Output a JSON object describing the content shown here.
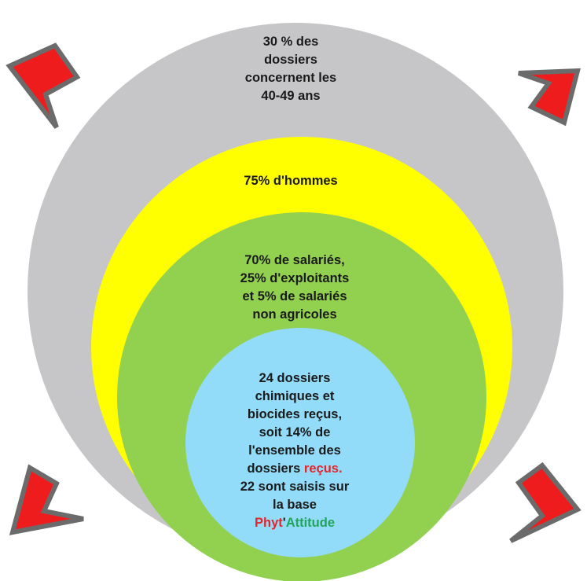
{
  "colors": {
    "gray": "#c6c6c9",
    "yellow": "#ffff00",
    "green": "#92d050",
    "blue": "#92dcf9",
    "arrow_fill": "#ee1c1c",
    "arrow_stroke": "#6b6b6b"
  },
  "circles": {
    "gray": {
      "lines": [
        "30 % des",
        "dossiers",
        "concernent les",
        "40-49 ans"
      ]
    },
    "yellow": {
      "lines": [
        "75% d'hommes"
      ]
    },
    "green": {
      "lines": [
        "70% de salariés,",
        "25% d'exploitants",
        "et 5% de salariés",
        "non agricoles"
      ]
    },
    "blue": {
      "lines": [
        "24 dossiers",
        "chimiques et",
        "biocides reçus,",
        "soit 14% de",
        "l'ensemble des"
      ],
      "line6_prefix": "dossiers ",
      "line6_highlight": "reçus.",
      "line7": "22 sont saisis sur",
      "line8": "la base",
      "brand_part1": "Phyt",
      "brand_apostrophe": "'",
      "brand_part2": "Attitude"
    }
  },
  "arrows": [
    "arrow-top-left",
    "arrow-top-right",
    "arrow-bottom-left",
    "arrow-bottom-right"
  ]
}
